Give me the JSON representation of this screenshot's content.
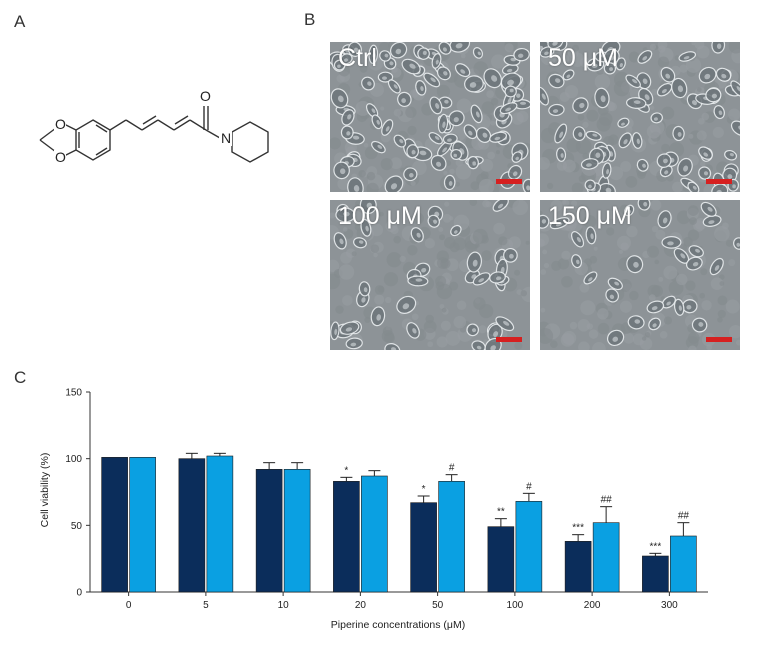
{
  "panels": {
    "a": "A",
    "b": "B",
    "c": "C"
  },
  "structure": {
    "atoms": {
      "carbonyl_o": "O",
      "amide_n": "N",
      "ring_o_top": "O",
      "ring_o_bottom": "O"
    }
  },
  "micrographs": [
    {
      "label": "Ctrl",
      "density": "high"
    },
    {
      "label": "50 μM",
      "density": "high"
    },
    {
      "label": "100 μM",
      "density": "medium"
    },
    {
      "label": "150 μM",
      "density": "low"
    }
  ],
  "colors": {
    "series1": "#0b2d5b",
    "series2": "#0aa0e2",
    "scale_bar": "#d62020"
  },
  "chart_data": {
    "type": "bar",
    "xlabel": "Piperine concentrations (μM)",
    "ylabel": "Cell viability (%)",
    "ylim": [
      0,
      150
    ],
    "yticks": [
      0,
      50,
      100,
      150
    ],
    "categories": [
      "0",
      "5",
      "10",
      "20",
      "50",
      "100",
      "200",
      "300"
    ],
    "series": [
      {
        "values": [
          101,
          100,
          92,
          83,
          67,
          49,
          38,
          27
        ],
        "errors": [
          0,
          4,
          5,
          3,
          5,
          6,
          5,
          2
        ],
        "annotations": [
          "",
          "",
          "",
          "*",
          "*",
          "**",
          "***",
          "***"
        ]
      },
      {
        "values": [
          101,
          102,
          92,
          87,
          83,
          68,
          52,
          42
        ],
        "errors": [
          0,
          2,
          5,
          4,
          5,
          6,
          12,
          10
        ],
        "annotations": [
          "",
          "",
          "",
          "",
          "#",
          "#",
          "##",
          "##"
        ]
      }
    ],
    "grid": false
  }
}
